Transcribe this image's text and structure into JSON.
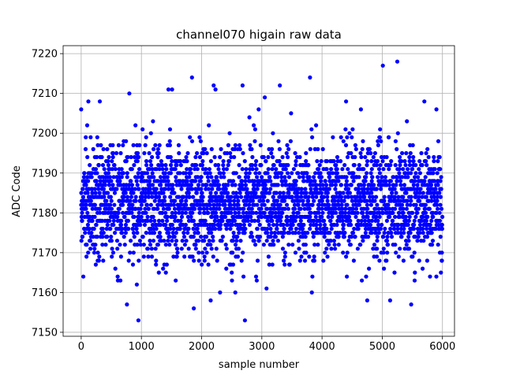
{
  "chart_data": {
    "type": "scatter",
    "title": "channel070 higain raw data",
    "xlabel": "sample number",
    "ylabel": "ADC Code",
    "xlim": [
      -300,
      6200
    ],
    "ylim": [
      7149,
      7222
    ],
    "xticks": [
      0,
      1000,
      2000,
      3000,
      4000,
      5000,
      6000
    ],
    "yticks": [
      7150,
      7160,
      7170,
      7180,
      7190,
      7200,
      7210,
      7220
    ],
    "grid": true,
    "marker_color": "#0000ff",
    "n_samples": 6000,
    "y_integer": true,
    "y_median": 7183,
    "y_typical_spread": [
      7172,
      7195
    ],
    "x": [
      0,
      100,
      120,
      310,
      760,
      800,
      950,
      1450,
      1510,
      1840,
      1870,
      2150,
      2200,
      2230,
      2560,
      2680,
      2720,
      3050,
      3300,
      3800,
      3830,
      4400,
      4750,
      5010,
      5130,
      5250,
      5480,
      5700,
      5900
    ],
    "y": [
      7206,
      7202,
      7208,
      7208,
      7157,
      7210,
      7153,
      7211,
      7211,
      7214,
      7156,
      7158,
      7212,
      7211,
      7160,
      7212,
      7153,
      7209,
      7212,
      7214,
      7160,
      7208,
      7158,
      7217,
      7158,
      7218,
      7157,
      7208,
      7206
    ]
  }
}
